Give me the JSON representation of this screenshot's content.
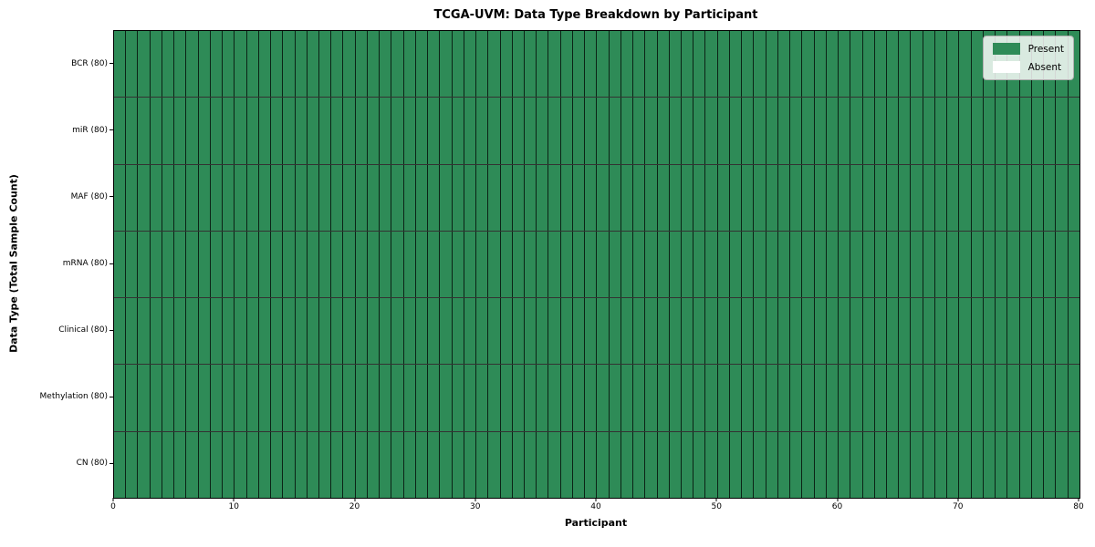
{
  "chart_data": {
    "type": "heatmap",
    "title": "TCGA-UVM: Data Type Breakdown by Participant",
    "xlabel": "Participant",
    "ylabel": "Data Type (Total Sample Count)",
    "x_range": [
      0,
      80
    ],
    "x_ticks": [
      0,
      10,
      20,
      30,
      40,
      50,
      60,
      70,
      80
    ],
    "n_participants": 80,
    "rows": [
      {
        "label": "BCR (80)",
        "data_type": "BCR",
        "total": 80,
        "present_count": 80,
        "absent_count": 0
      },
      {
        "label": "miR (80)",
        "data_type": "miR",
        "total": 80,
        "present_count": 80,
        "absent_count": 0
      },
      {
        "label": "MAF (80)",
        "data_type": "MAF",
        "total": 80,
        "present_count": 80,
        "absent_count": 0
      },
      {
        "label": "mRNA (80)",
        "data_type": "mRNA",
        "total": 80,
        "present_count": 80,
        "absent_count": 0
      },
      {
        "label": "Clinical (80)",
        "data_type": "Clinical",
        "total": 80,
        "present_count": 80,
        "absent_count": 0
      },
      {
        "label": "Methylation (80)",
        "data_type": "Methylation",
        "total": 80,
        "present_count": 80,
        "absent_count": 0
      },
      {
        "label": "CN (80)",
        "data_type": "CN",
        "total": 80,
        "present_count": 80,
        "absent_count": 0
      }
    ],
    "legend": [
      {
        "label": "Present",
        "color": "#2e8b57"
      },
      {
        "label": "Absent",
        "color": "#ffffff"
      }
    ],
    "legend_position": "upper right",
    "colors": {
      "present": "#2e8b57",
      "absent": "#ffffff",
      "cell_border": "#1c1c1c",
      "frame": "#000000"
    },
    "grid": "cell-borders"
  }
}
